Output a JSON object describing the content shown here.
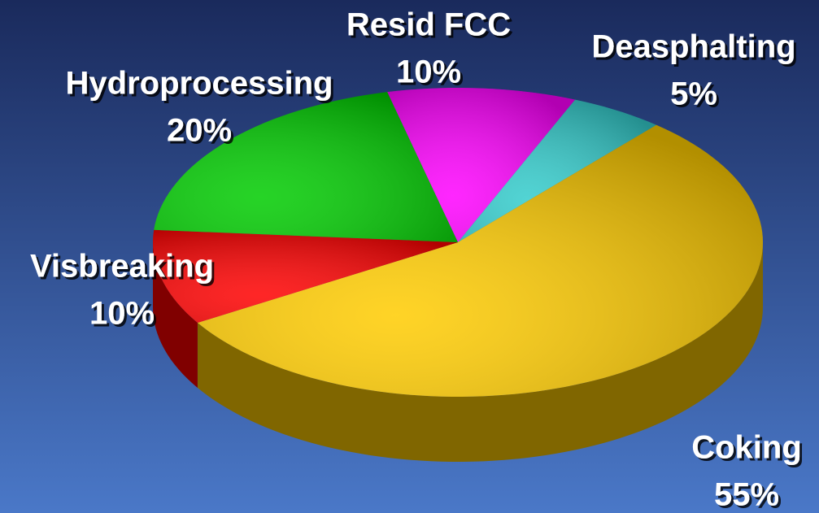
{
  "chart_data": {
    "type": "pie",
    "categories": [
      "Resid FCC",
      "Deasphalting",
      "Coking",
      "Visbreaking",
      "Hydroprocessing"
    ],
    "values": [
      10,
      5,
      55,
      10,
      20
    ],
    "value_labels": [
      "10%",
      "5%",
      "55%",
      "10%",
      "20%"
    ],
    "colors": [
      "#ff00ff",
      "#33cccc",
      "#ffcc00",
      "#ff0000",
      "#00cc00"
    ]
  }
}
